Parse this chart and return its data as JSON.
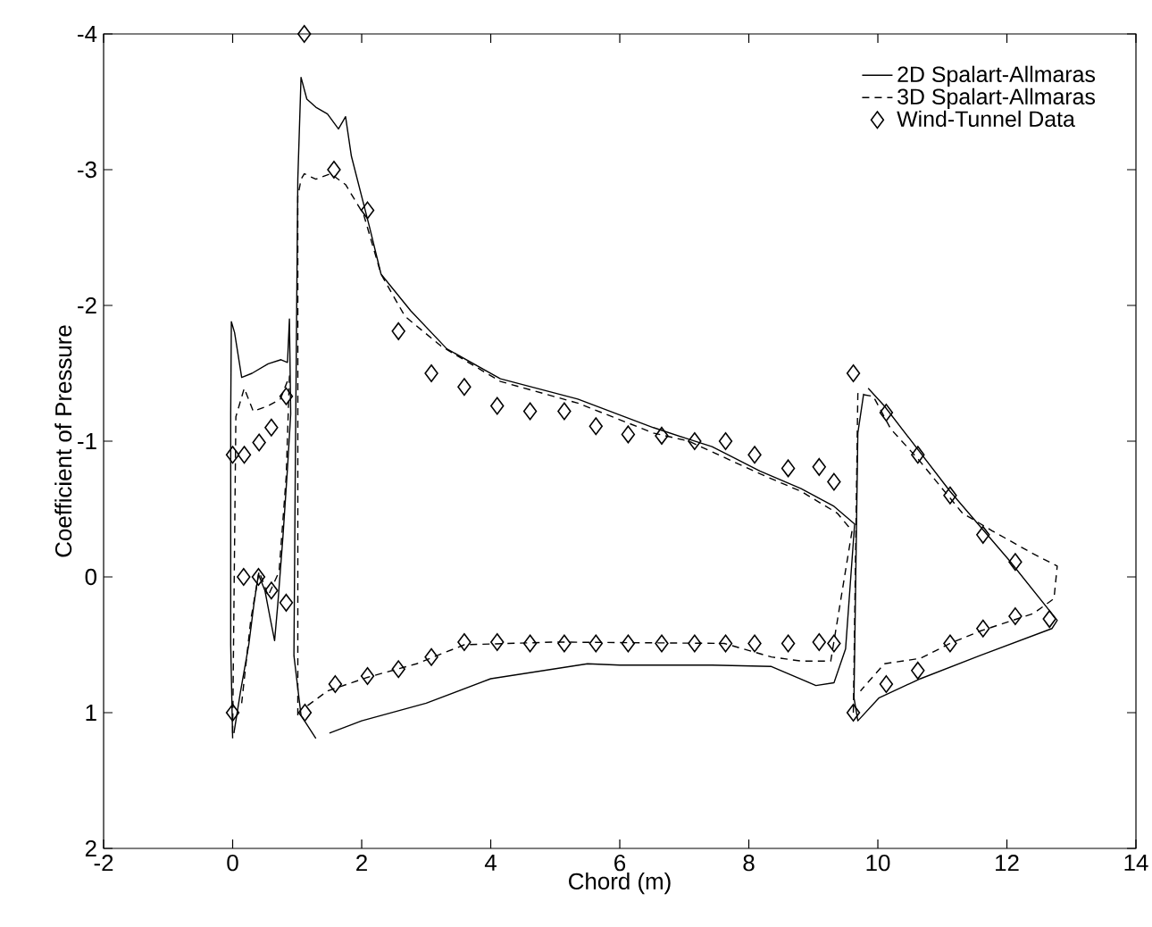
{
  "chart_data": {
    "type": "line",
    "xlabel": "Chord (m)",
    "ylabel": "Coefficient of Pressure",
    "xlim": [
      -2,
      14
    ],
    "xticks": [
      -2,
      0,
      2,
      4,
      6,
      8,
      10,
      12,
      14
    ],
    "ylim": [
      2,
      -4
    ],
    "yticks": [
      -4,
      -3,
      -2,
      -1,
      0,
      1,
      2
    ],
    "legend": "top right",
    "grid": false,
    "series": [
      {
        "name": "2D Spalart-Allmaras",
        "color": "#000000",
        "line_style": "solid",
        "x": [
          0,
          -0.03,
          -0.03,
          -0.02,
          0.03,
          0.14,
          0.3,
          0.55,
          0.75,
          0.85,
          0.88,
          0.9,
          0.85,
          0.78,
          0.7,
          0.65,
          0.58,
          0.5,
          0.4,
          0.33,
          0.25,
          0.12,
          0.02
        ],
        "values": [
          1.19,
          0.5,
          -1.2,
          -1.88,
          -1.8,
          -1.47,
          -1.5,
          -1.57,
          -1.6,
          -1.58,
          -1.9,
          -1.2,
          -0.8,
          -0.3,
          0.2,
          0.47,
          0.3,
          0.1,
          -0.02,
          0.2,
          0.5,
          0.85,
          1.15
        ]
      },
      {
        "name": "3D Spalart-Allmaras",
        "color": "#000000",
        "line_style": "dashed",
        "x": [
          0,
          0.05,
          0.18,
          0.32,
          0.55,
          0.74,
          0.88,
          0.83,
          0.72,
          0.55,
          0.41,
          0.28,
          0.14
        ],
        "values": [
          1.15,
          -1.18,
          -1.39,
          -1.22,
          -1.26,
          -1.31,
          -1.48,
          -0.74,
          -0.04,
          0.14,
          -0.04,
          0.32,
          0.93
        ]
      },
      {
        "name": "Wind-Tunnel Data",
        "color": "#000000",
        "type": "scatter",
        "marker": "diamond",
        "x": [
          1.11,
          1.57,
          2.09,
          2.57,
          3.08,
          3.59,
          4.1,
          4.61,
          5.14,
          5.63,
          6.13,
          6.65,
          7.16,
          7.64,
          8.09,
          8.61,
          9.09,
          9.32,
          0,
          0.18,
          0.41,
          0.6,
          0.83,
          0.17,
          0.4,
          0.6,
          0.83,
          0,
          1.12,
          1.59,
          2.09,
          2.57,
          3.08,
          3.59,
          4.1,
          4.61,
          5.14,
          5.63,
          6.13,
          6.65,
          7.16,
          7.64,
          8.09,
          8.61,
          9.09,
          9.32,
          9.62,
          10.13,
          10.62,
          11.12,
          11.63,
          12.13,
          12.66,
          9.62,
          10.13,
          10.62,
          11.12,
          11.63,
          12.13
        ],
        "values": [
          -4.0,
          -3.0,
          -2.7,
          -1.81,
          -1.5,
          -1.4,
          -1.26,
          -1.22,
          -1.22,
          -1.11,
          -1.05,
          -1.04,
          -1.0,
          -1.0,
          -0.9,
          -0.8,
          -0.81,
          -0.7,
          -0.9,
          -0.9,
          -0.99,
          -1.1,
          -1.33,
          0,
          0,
          0.1,
          0.19,
          1.0,
          1.0,
          0.79,
          0.73,
          0.68,
          0.59,
          0.48,
          0.48,
          0.49,
          0.49,
          0.49,
          0.49,
          0.49,
          0.49,
          0.49,
          0.49,
          0.49,
          0.48,
          0.49,
          -1.5,
          -1.21,
          -0.9,
          -0.6,
          -0.31,
          -0.11,
          0.31,
          1.0,
          0.79,
          0.69,
          0.49,
          0.38,
          0.29
        ]
      },
      {
        "color": "#000000",
        "line_style": "solid",
        "x": [
          1.29,
          1.06,
          0.95,
          0.97,
          1.01,
          1.06,
          1.15,
          1.29,
          1.47,
          1.64,
          1.75,
          1.84,
          2.12,
          2.3,
          2.76,
          3.32,
          4.15,
          5.35,
          6.52,
          7.03,
          7.43,
          8.17,
          8.81,
          9.32,
          9.64,
          9.5,
          9.32,
          9.04,
          8.35,
          7.43,
          6,
          5.5,
          4,
          3,
          2,
          1.5
        ],
        "values": [
          1.19,
          1.02,
          0.58,
          -0.74,
          -2.93,
          -3.68,
          -3.52,
          -3.46,
          -3.41,
          -3.3,
          -3.39,
          -3.1,
          -2.58,
          -2.23,
          -1.96,
          -1.68,
          -1.46,
          -1.31,
          -1.1,
          -1.02,
          -0.96,
          -0.78,
          -0.65,
          -0.52,
          -0.39,
          0.53,
          0.78,
          0.8,
          0.66,
          0.65,
          0.65,
          0.64,
          0.75,
          0.93,
          1.06,
          1.15
        ]
      },
      {
        "color": "#000000",
        "line_style": "solid",
        "x": [
          9.85,
          10.1,
          11.12,
          12.04,
          12.78,
          12.7,
          11.58,
          10.66,
          10.02,
          9.69,
          9.63,
          9.69,
          9.78
        ],
        "values": [
          -1.39,
          -1.26,
          -0.63,
          -0.12,
          0.32,
          0.38,
          0.58,
          0.75,
          0.89,
          1.06,
          0.89,
          -1.06,
          -1.35
        ]
      },
      {
        "color": "#000000",
        "line_style": "dashed",
        "x": [
          1.01,
          1.01,
          1.06,
          1.11,
          1.29,
          1.52,
          1.75,
          2.03,
          2.3,
          2.67,
          3.23,
          4.15,
          5.35,
          6.52,
          7.07,
          8.17,
          8.81,
          9.37,
          9.6,
          9.27,
          8.81,
          8.35,
          7.62,
          5,
          3.59,
          2.85,
          2.09,
          1.47,
          1.1
        ],
        "values": [
          1.02,
          -2.8,
          -2.93,
          -2.97,
          -2.93,
          -2.97,
          -2.89,
          -2.67,
          -2.23,
          -1.92,
          -1.7,
          -1.44,
          -1.28,
          -1.06,
          -1.0,
          -0.76,
          -0.63,
          -0.47,
          -0.34,
          0.62,
          0.62,
          0.59,
          0.49,
          0.48,
          0.5,
          0.64,
          0.74,
          0.84,
          0.97
        ]
      },
      {
        "color": "#000000",
        "line_style": "dashed",
        "x": [
          9.62,
          9.69,
          9.93,
          10.2,
          10.62,
          11.31,
          11.77,
          12.41,
          12.78,
          12.73,
          12.41,
          11.58,
          11.12,
          10.66,
          10.1,
          9.73
        ],
        "values": [
          1.0,
          -1.35,
          -1.33,
          -1.09,
          -0.87,
          -0.47,
          -0.34,
          -0.17,
          -0.08,
          0.16,
          0.27,
          0.4,
          0.49,
          0.6,
          0.64,
          0.84
        ]
      }
    ]
  }
}
